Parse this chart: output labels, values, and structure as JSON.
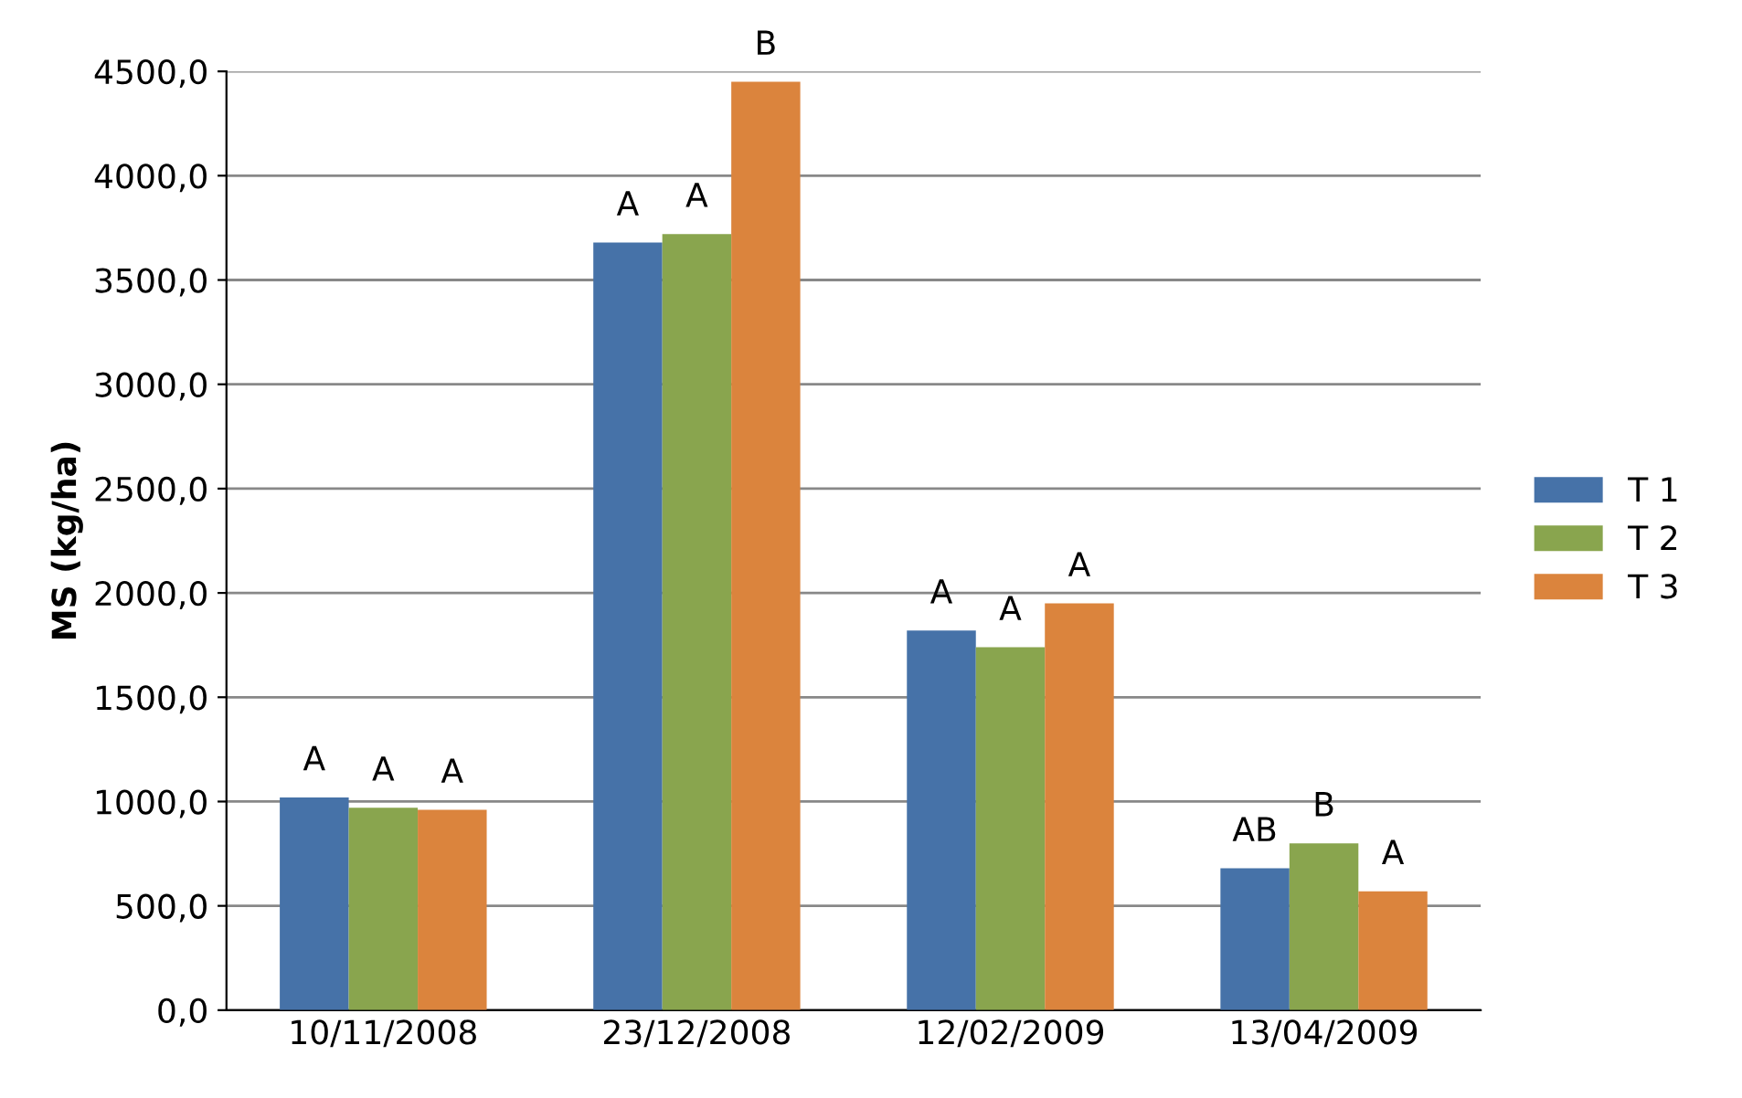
{
  "chart_data": {
    "type": "bar",
    "ylabel": "MS (kg/ha)",
    "categories": [
      "10/11/2008",
      "23/12/2008",
      "12/02/2009",
      "13/04/2009"
    ],
    "series": [
      {
        "name": "T 1",
        "color": "#4672a8",
        "values": [
          1020,
          3680,
          1820,
          680
        ]
      },
      {
        "name": "T 2",
        "color": "#89a54e",
        "values": [
          970,
          3720,
          1740,
          800
        ]
      },
      {
        "name": "T 3",
        "color": "#db843d",
        "values": [
          960,
          4450,
          1950,
          570
        ]
      }
    ],
    "ylim": [
      0,
      4500
    ],
    "yticks": [
      {
        "value": 0,
        "label": "0,0"
      },
      {
        "value": 500,
        "label": "500,0"
      },
      {
        "value": 1000,
        "label": "1000,0"
      },
      {
        "value": 1500,
        "label": "1500,0"
      },
      {
        "value": 2000,
        "label": "2000,0"
      },
      {
        "value": 2500,
        "label": "2500,0"
      },
      {
        "value": 3000,
        "label": "3000,0"
      },
      {
        "value": 3500,
        "label": "3500,0"
      },
      {
        "value": 4000,
        "label": "4000,0"
      },
      {
        "value": 4500,
        "label": "4500,0"
      }
    ],
    "grid": "y",
    "legend": "right",
    "annotations": [
      "A",
      "A",
      "A",
      "A",
      "A",
      "B",
      "A",
      "A",
      "A",
      "AB",
      "B",
      "A"
    ]
  }
}
